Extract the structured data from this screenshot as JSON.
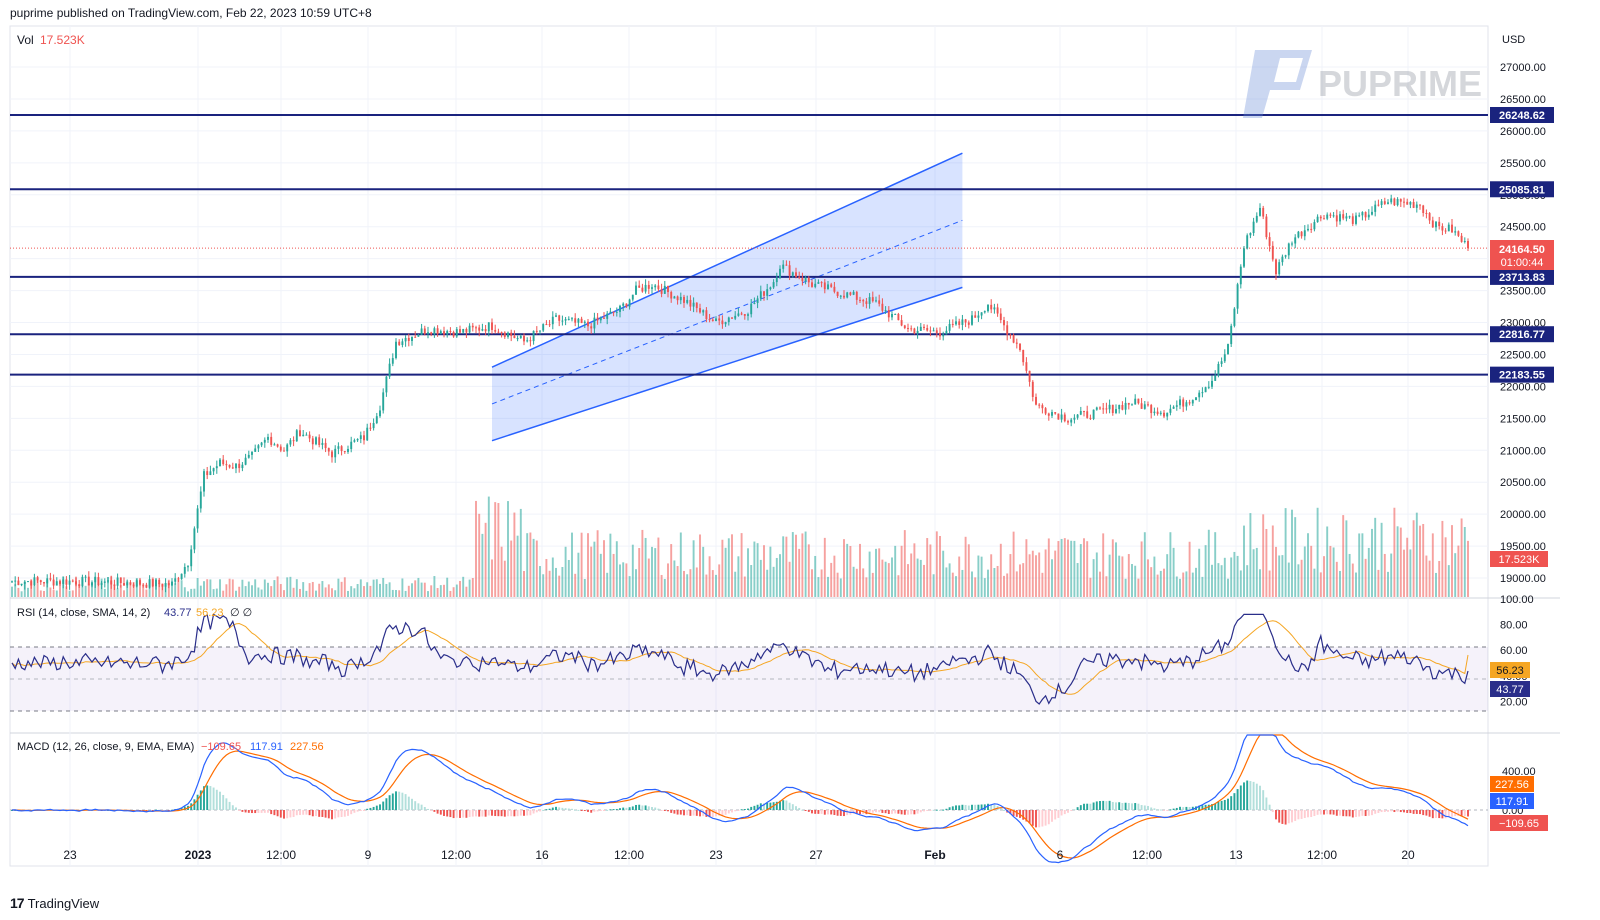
{
  "header": {
    "published": "puprime published on TradingView.com, Feb 22, 2023 10:59 UTC+8"
  },
  "footer": {
    "logo_icon": "tradingview-logo-icon",
    "label": "TradingView"
  },
  "watermark": {
    "text": "PUPRIME"
  },
  "main_pane": {
    "currency": "USD",
    "vol_label": "Vol",
    "vol_value": "17.523K",
    "price_ticks": [
      "27000.00",
      "26500.00",
      "26000.00",
      "25500.00",
      "25000.00",
      "24500.00",
      "24000.00",
      "23500.00",
      "23000.00",
      "22500.00",
      "22000.00",
      "21500.00",
      "21000.00",
      "20500.00",
      "20000.00",
      "19500.00",
      "19000.00"
    ],
    "levels": [
      "26248.62",
      "25085.81",
      "23713.83",
      "22816.77",
      "22183.55"
    ],
    "last_price": "24164.50",
    "countdown": "01:00:44",
    "vol_badge": "17.523K"
  },
  "rsi_pane": {
    "title": "RSI (14, close, SMA, 14, 2)",
    "rsi_value": "43.77",
    "sma_value": "56.23",
    "extra": "∅ ∅",
    "ticks": [
      "100.00",
      "80.00",
      "60.00",
      "40.00",
      "20.00"
    ],
    "badge_sma": "56.23",
    "badge_rsi": "43.77"
  },
  "macd_pane": {
    "title": "MACD (12, 26, close, 9, EMA, EMA)",
    "hist_value": "−109.65",
    "macd_value": "117.91",
    "signal_value": "227.56",
    "ticks": [
      "400.00",
      "0.00"
    ],
    "badge_signal": "227.56",
    "badge_macd": "117.91",
    "badge_hist": "−109.65"
  },
  "time_axis": [
    "23",
    "2023",
    "12:00",
    "9",
    "12:00",
    "16",
    "12:00",
    "23",
    "27",
    "Feb",
    "6",
    "12:00",
    "13",
    "12:00",
    "20"
  ],
  "colors": {
    "up": "#26a69a",
    "down": "#ef5350",
    "level_line": "#1a237e",
    "channel": "#2962ff",
    "rsi": "#2a2e8a",
    "rsi_ma": "#f5a623",
    "macd": "#2962ff",
    "signal": "#ff6d00"
  },
  "chart_data": {
    "type": "candlestick",
    "price_path": [
      [
        0,
        18950
      ],
      [
        20,
        18950
      ],
      [
        40,
        18920
      ],
      [
        50,
        18900
      ],
      [
        55,
        19250
      ],
      [
        60,
        20600
      ],
      [
        65,
        20800
      ],
      [
        70,
        20750
      ],
      [
        75,
        20900
      ],
      [
        80,
        21200
      ],
      [
        85,
        21000
      ],
      [
        90,
        21300
      ],
      [
        100,
        20950
      ],
      [
        110,
        21200
      ],
      [
        115,
        21700
      ],
      [
        120,
        22700
      ],
      [
        130,
        22900
      ],
      [
        140,
        22850
      ],
      [
        150,
        22950
      ],
      [
        160,
        22700
      ],
      [
        170,
        23050
      ],
      [
        180,
        22950
      ],
      [
        190,
        23200
      ],
      [
        195,
        23500
      ],
      [
        200,
        23600
      ],
      [
        210,
        23350
      ],
      [
        220,
        23000
      ],
      [
        230,
        23200
      ],
      [
        238,
        23650
      ],
      [
        240,
        23900
      ],
      [
        250,
        23600
      ],
      [
        260,
        23450
      ],
      [
        270,
        23300
      ],
      [
        280,
        22900
      ],
      [
        290,
        22850
      ],
      [
        300,
        23050
      ],
      [
        305,
        23300
      ],
      [
        310,
        22950
      ],
      [
        315,
        22600
      ],
      [
        320,
        21700
      ],
      [
        330,
        21500
      ],
      [
        340,
        21600
      ],
      [
        350,
        21750
      ],
      [
        360,
        21600
      ],
      [
        368,
        21800
      ],
      [
        375,
        22100
      ],
      [
        380,
        22600
      ],
      [
        385,
        24200
      ],
      [
        390,
        24800
      ],
      [
        395,
        23800
      ],
      [
        400,
        24300
      ],
      [
        410,
        24700
      ],
      [
        420,
        24600
      ],
      [
        430,
        24900
      ],
      [
        440,
        24850
      ],
      [
        445,
        24500
      ],
      [
        450,
        24450
      ],
      [
        455,
        24164
      ]
    ],
    "volume_k": "17.523",
    "horizontal_levels": [
      26248.62,
      25085.81,
      23713.83,
      22816.77,
      22183.55
    ],
    "last_price": 24164.5,
    "rsi_last": 43.77,
    "rsi_sma_last": 56.23,
    "macd_last": 117.91,
    "signal_last": 227.56,
    "hist_last": -109.65,
    "price_range": [
      18800,
      27300
    ],
    "rsi_range": [
      0,
      100
    ]
  }
}
